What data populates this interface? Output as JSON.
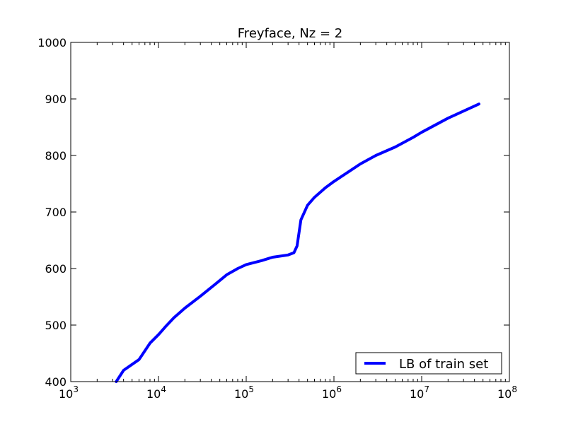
{
  "chart_data": {
    "type": "line",
    "title": "Freyface, Nz = 2",
    "xlabel": "",
    "ylabel": "",
    "xscale": "log",
    "xlim": [
      1000,
      100000000
    ],
    "ylim": [
      400,
      1000
    ],
    "x_ticks": [
      {
        "base": "10",
        "exp": "3"
      },
      {
        "base": "10",
        "exp": "4"
      },
      {
        "base": "10",
        "exp": "5"
      },
      {
        "base": "10",
        "exp": "6"
      },
      {
        "base": "10",
        "exp": "7"
      },
      {
        "base": "10",
        "exp": "8"
      }
    ],
    "y_ticks": [
      "400",
      "500",
      "600",
      "700",
      "800",
      "900",
      "1000"
    ],
    "grid": false,
    "legend_position": "bottom-right",
    "series": [
      {
        "name": "LB of train set",
        "color": "#0000ff",
        "x": [
          3300,
          4000,
          6000,
          8000,
          10000,
          12000,
          15000,
          20000,
          30000,
          45000,
          60000,
          80000,
          100000,
          150000,
          200000,
          300000,
          350000,
          380000,
          420000,
          500000,
          600000,
          800000,
          1000000,
          2000000,
          3000000,
          5000000,
          8000000,
          10000000,
          20000000,
          45000000
        ],
        "y": [
          400,
          420,
          439,
          468,
          483,
          497,
          513,
          530,
          551,
          573,
          589,
          600,
          607,
          614,
          620,
          624,
          628,
          640,
          686,
          712,
          726,
          743,
          754,
          785,
          800,
          815,
          832,
          841,
          866,
          891
        ]
      }
    ]
  }
}
